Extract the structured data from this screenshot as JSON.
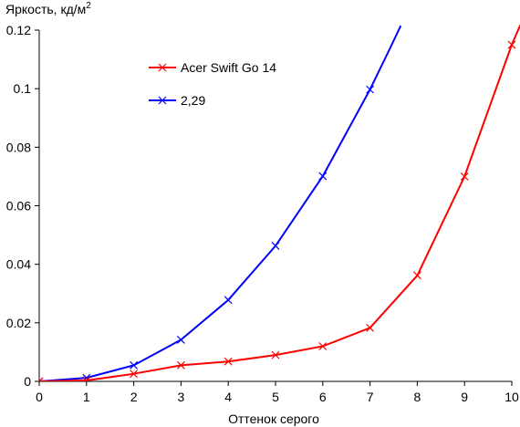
{
  "chart_data": {
    "type": "line",
    "ylabel_main": "Яркость, кд/м",
    "ylabel_sup": "2",
    "xlabel": "Оттенок серого",
    "xlim": [
      0,
      10
    ],
    "ylim": [
      0,
      0.12
    ],
    "x_ticks": [
      "0",
      "1",
      "2",
      "3",
      "4",
      "5",
      "6",
      "7",
      "8",
      "9",
      "10"
    ],
    "y_ticks": [
      {
        "value": 0,
        "label": "0"
      },
      {
        "value": 0.02,
        "label": "0.02"
      },
      {
        "value": 0.04,
        "label": "0.04"
      },
      {
        "value": 0.06,
        "label": "0.06"
      },
      {
        "value": 0.08,
        "label": "0.08"
      },
      {
        "value": 0.1,
        "label": "0.1"
      },
      {
        "value": 0.12,
        "label": "0.12"
      }
    ],
    "grid": false,
    "legend_position": "top-left",
    "series": [
      {
        "name": "Acer Swift Go 14",
        "color": "#ff0000",
        "marker": "x",
        "x": [
          0,
          1,
          2,
          3,
          4,
          5,
          6,
          7,
          8,
          9,
          10
        ],
        "y": [
          0,
          0.0003,
          0.0026,
          0.0055,
          0.0068,
          0.009,
          0.012,
          0.0183,
          0.0362,
          0.07,
          0.115
        ],
        "line_x": [
          0,
          1,
          2,
          3,
          4,
          5,
          6,
          7,
          8,
          9,
          10,
          10.2
        ],
        "line_y": [
          0,
          0.0003,
          0.0026,
          0.0055,
          0.0068,
          0.009,
          0.012,
          0.0183,
          0.0362,
          0.07,
          0.115,
          0.1225
        ]
      },
      {
        "name": "2,29",
        "color": "#0000ff",
        "marker": "x",
        "x": [
          0,
          1,
          2,
          3,
          4,
          5,
          6,
          7
        ],
        "y": [
          0,
          0.0012,
          0.0055,
          0.0142,
          0.0278,
          0.0463,
          0.0701,
          0.0997
        ],
        "line_x": [
          0,
          1,
          2,
          3,
          4,
          5,
          6,
          7,
          7.4,
          7.65
        ],
        "line_y": [
          0,
          0.0012,
          0.0055,
          0.0142,
          0.0278,
          0.0463,
          0.0701,
          0.0997,
          0.113,
          0.1215
        ]
      }
    ]
  }
}
